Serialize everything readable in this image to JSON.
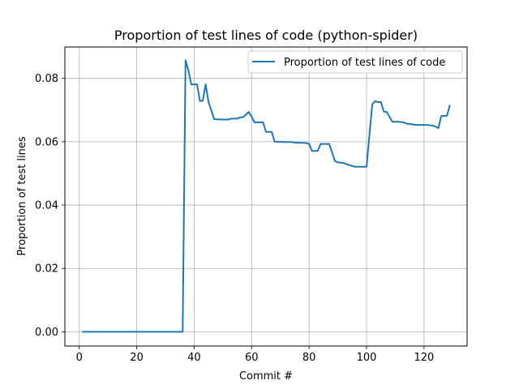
{
  "chart_data": {
    "type": "line",
    "title": "Proportion of test lines of code (python-spider)",
    "xlabel": "Commit #",
    "ylabel": "Proportion of test lines",
    "xlim": [
      -5,
      135
    ],
    "ylim": [
      -0.0045,
      0.0899
    ],
    "x_ticks": [
      0,
      20,
      40,
      60,
      80,
      100,
      120
    ],
    "y_ticks": [
      0.0,
      0.02,
      0.04,
      0.06,
      0.08
    ],
    "x_tick_labels": [
      "0",
      "20",
      "40",
      "60",
      "80",
      "100",
      "120"
    ],
    "y_tick_labels": [
      "0.00",
      "0.02",
      "0.04",
      "0.06",
      "0.08"
    ],
    "grid": true,
    "legend_position": "upper right",
    "series": [
      {
        "name": "Proportion of test lines of code",
        "color": "#1f77b4",
        "x": [
          1,
          36,
          37,
          38,
          39,
          41,
          42,
          43,
          44,
          45,
          47,
          50,
          52,
          53,
          55,
          56,
          57,
          59,
          60,
          61,
          62,
          64,
          65,
          67,
          68,
          70,
          71,
          74,
          75,
          79,
          80,
          81,
          83,
          84,
          86,
          87,
          89,
          90,
          92,
          93,
          96,
          98,
          99,
          100,
          101,
          102,
          103,
          104,
          105,
          106,
          107,
          109,
          110,
          111,
          113,
          114,
          116,
          117,
          120,
          121,
          123,
          124,
          125,
          126,
          128,
          129
        ],
        "y": [
          0.0,
          0.0,
          0.0857,
          0.0825,
          0.0781,
          0.0781,
          0.0729,
          0.0729,
          0.0781,
          0.0725,
          0.0671,
          0.067,
          0.067,
          0.0673,
          0.0673,
          0.0677,
          0.0677,
          0.0694,
          0.0679,
          0.0661,
          0.0661,
          0.0661,
          0.0631,
          0.0631,
          0.06,
          0.06,
          0.0599,
          0.0599,
          0.0597,
          0.0596,
          0.0593,
          0.0571,
          0.0571,
          0.0593,
          0.0593,
          0.0593,
          0.0539,
          0.0535,
          0.0533,
          0.0529,
          0.0521,
          0.0521,
          0.0521,
          0.0521,
          0.0621,
          0.0718,
          0.0728,
          0.0725,
          0.0725,
          0.0695,
          0.0694,
          0.0663,
          0.0663,
          0.0663,
          0.0661,
          0.0657,
          0.0655,
          0.0653,
          0.0653,
          0.0653,
          0.0651,
          0.0648,
          0.0643,
          0.0681,
          0.0682,
          0.0716
        ]
      }
    ]
  }
}
